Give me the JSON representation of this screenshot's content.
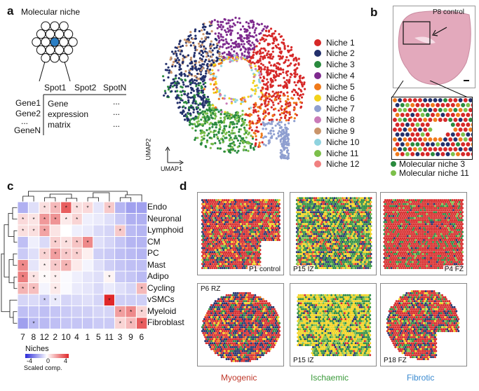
{
  "panel_a": {
    "letter": "a",
    "title": "Molecular niche",
    "spots": [
      "Spot1",
      "Spot2",
      "SpotN"
    ],
    "genes": [
      "Gene1",
      "Gene2",
      "...",
      "GeneN"
    ],
    "matrix_text": [
      "Gene",
      "expression",
      "matrix"
    ],
    "dots": "...",
    "umap_x": "UMAP1",
    "umap_y": "UMAP2"
  },
  "legend": [
    {
      "label": "Niche 1",
      "color": "#d62828"
    },
    {
      "label": "Niche 2",
      "color": "#23306b"
    },
    {
      "label": "Niche 3",
      "color": "#2a8a3e"
    },
    {
      "label": "Niche 4",
      "color": "#7e2a8e"
    },
    {
      "label": "Niche 5",
      "color": "#f07a1a"
    },
    {
      "label": "Niche 6",
      "color": "#f2d21b"
    },
    {
      "label": "Niche 7",
      "color": "#8f9fd0"
    },
    {
      "label": "Niche 8",
      "color": "#c97bb8"
    },
    {
      "label": "Niche 9",
      "color": "#c9946a"
    },
    {
      "label": "Niche 10",
      "color": "#8fd3df"
    },
    {
      "label": "Niche 11",
      "color": "#7cbf4a"
    },
    {
      "label": "Niche 12",
      "color": "#f08080"
    }
  ],
  "panel_b": {
    "letter": "b",
    "sample": "P8 control",
    "legend": [
      {
        "label": "Molecular niche 3",
        "color": "#2a8a3e"
      },
      {
        "label": "Molecular niche 11",
        "color": "#7cbf4a"
      }
    ]
  },
  "panel_c": {
    "letter": "c",
    "columns": [
      "7",
      "8",
      "12",
      "2",
      "10",
      "4",
      "1",
      "5",
      "11",
      "3",
      "9",
      "6"
    ],
    "rows": [
      "Endo",
      "Neuronal",
      "Lymphoid",
      "CM",
      "PC",
      "Mast",
      "Adipo",
      "Cycling",
      "vSMCs",
      "Myeloid",
      "Fibroblast"
    ],
    "values": [
      [
        -1.5,
        -0.6,
        0.6,
        1.3,
        3.0,
        0.6,
        0.7,
        -0.5,
        1.0,
        -1.4,
        -1.8,
        -1.8
      ],
      [
        0.7,
        0.5,
        1.9,
        2.0,
        0.4,
        0.8,
        -0.3,
        -0.4,
        -0.6,
        -1.0,
        -1.5,
        -1.5
      ],
      [
        0.6,
        0.6,
        1.7,
        0.5,
        0.0,
        -0.3,
        -0.4,
        -0.7,
        -0.8,
        1.0,
        -1.3,
        -1.4
      ],
      [
        -1.2,
        -0.3,
        -0.7,
        0.9,
        0.6,
        1.1,
        2.2,
        -0.6,
        -0.8,
        -1.1,
        -1.4,
        -1.4
      ],
      [
        -1.0,
        -0.6,
        0.8,
        1.8,
        1.0,
        0.9,
        0.3,
        -0.9,
        -1.0,
        -1.2,
        -1.3,
        -1.4
      ],
      [
        2.2,
        -0.5,
        0.3,
        1.0,
        1.4,
        0.4,
        -0.2,
        -0.6,
        -0.9,
        -1.1,
        -1.2,
        -1.2
      ],
      [
        2.4,
        0.5,
        0.1,
        0.3,
        -0.1,
        -0.3,
        -0.5,
        -0.6,
        0.2,
        -1.0,
        -1.1,
        -1.3
      ],
      [
        1.4,
        1.2,
        -0.2,
        0.4,
        -0.1,
        -0.4,
        -0.5,
        -0.7,
        -0.4,
        -0.6,
        -0.8,
        1.3
      ],
      [
        -0.8,
        -0.7,
        -0.9,
        -0.4,
        -0.8,
        -0.7,
        -0.6,
        -0.8,
        4.0,
        -0.9,
        -0.9,
        -0.9
      ],
      [
        -1.2,
        -1.1,
        -1.2,
        -1.1,
        -1.0,
        -0.9,
        -0.9,
        -0.8,
        -0.8,
        1.8,
        2.2,
        0.8
      ],
      [
        -1.8,
        -1.3,
        -1.3,
        -1.2,
        -1.1,
        -1.1,
        -1.1,
        -1.0,
        -1.0,
        0.8,
        1.3,
        3.0
      ]
    ],
    "stars": [
      [
        0,
        0,
        1,
        1,
        1,
        1,
        1,
        0,
        1,
        0,
        0,
        0
      ],
      [
        1,
        1,
        1,
        1,
        1,
        1,
        0,
        0,
        0,
        0,
        0,
        0
      ],
      [
        1,
        1,
        1,
        0,
        0,
        0,
        0,
        0,
        0,
        1,
        0,
        0
      ],
      [
        0,
        0,
        0,
        1,
        1,
        1,
        1,
        0,
        0,
        0,
        0,
        0
      ],
      [
        0,
        0,
        1,
        1,
        1,
        1,
        0,
        0,
        0,
        0,
        0,
        0
      ],
      [
        1,
        0,
        1,
        1,
        1,
        0,
        0,
        0,
        0,
        0,
        0,
        0
      ],
      [
        1,
        1,
        1,
        1,
        0,
        0,
        0,
        0,
        1,
        0,
        0,
        0
      ],
      [
        1,
        1,
        0,
        1,
        0,
        0,
        0,
        0,
        0,
        0,
        0,
        1
      ],
      [
        0,
        0,
        1,
        1,
        0,
        0,
        0,
        0,
        1,
        0,
        0,
        0
      ],
      [
        0,
        0,
        0,
        0,
        0,
        0,
        0,
        0,
        0,
        1,
        1,
        1
      ],
      [
        0,
        1,
        0,
        0,
        0,
        0,
        0,
        0,
        0,
        1,
        1,
        1
      ]
    ],
    "xlabel": "Niches",
    "colorbar_ticks": [
      "-4",
      "0",
      "4"
    ],
    "colorbar_label": "Scaled comp."
  },
  "panel_d": {
    "letter": "d",
    "tiles": [
      {
        "label": "P1 control",
        "corner": "br"
      },
      {
        "label": "P15 IZ",
        "corner": "bl"
      },
      {
        "label": "P4 FZ",
        "corner": "br"
      },
      {
        "label": "P6 RZ",
        "corner": "tl"
      },
      {
        "label": "P15 IZ",
        "corner": "bl"
      },
      {
        "label": "P18 FZ",
        "corner": "bl"
      }
    ],
    "categories": [
      {
        "label": "Myogenic",
        "color": "#c0392b"
      },
      {
        "label": "Ischaemic",
        "color": "#3a9a3a"
      },
      {
        "label": "Fibrotic",
        "color": "#3a8ad0"
      }
    ]
  }
}
